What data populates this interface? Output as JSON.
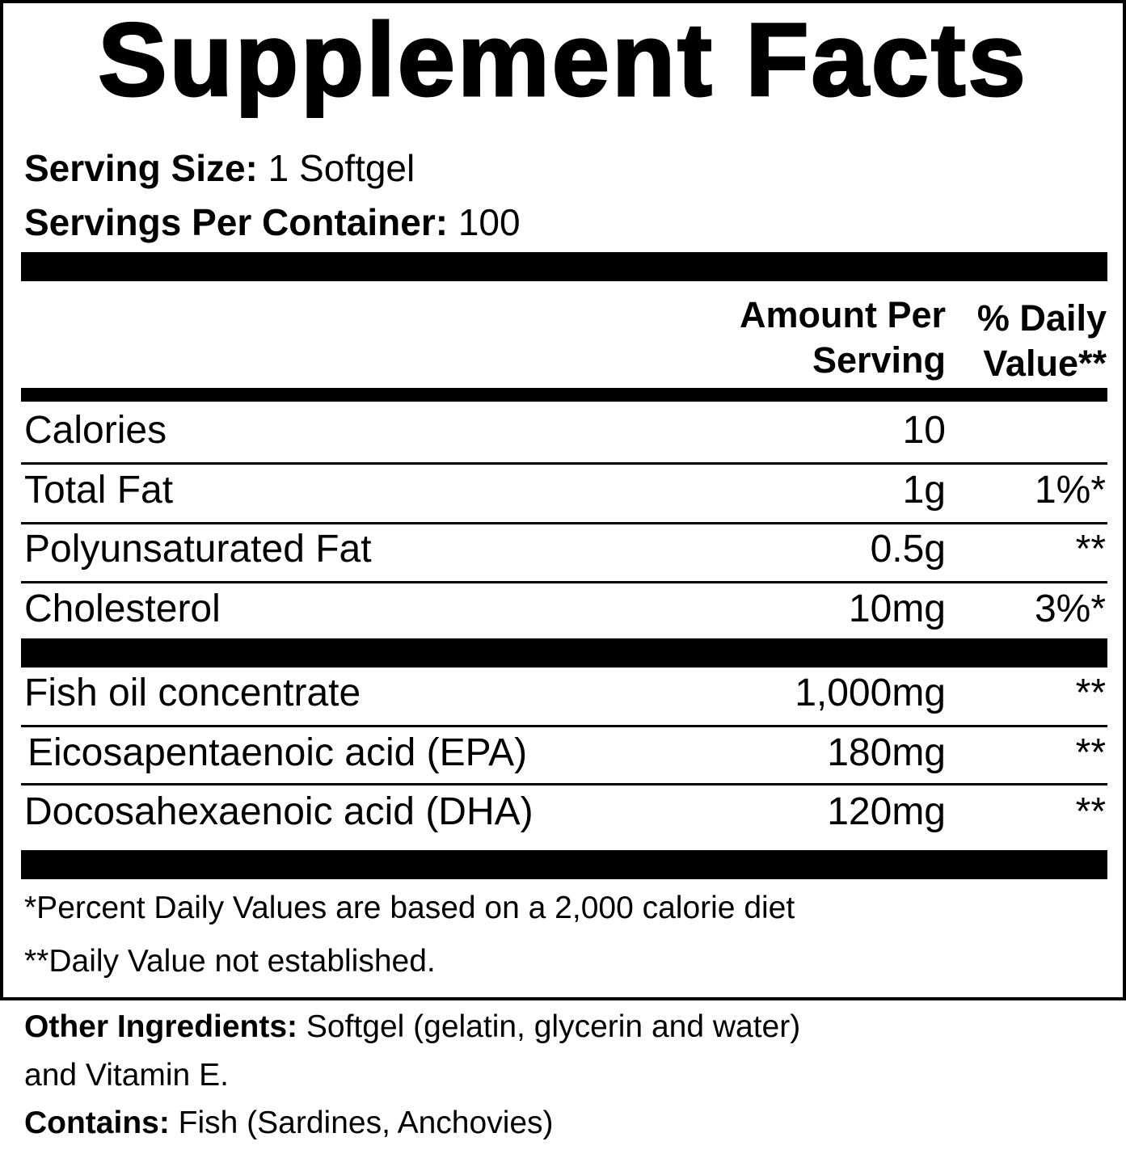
{
  "title": "Supplement Facts",
  "serving_size_label": "Serving Size:",
  "serving_size_value": " 1 Softgel",
  "servings_per_container_label": "Servings Per Container:",
  "servings_per_container_value": " 100",
  "header": {
    "amount_line1": "Amount Per",
    "amount_line2": "Serving",
    "dv_line1": "% Daily",
    "dv_line2": "Value**"
  },
  "rows": [
    {
      "name": "Calories",
      "amount": "10",
      "dv": ""
    },
    {
      "name": "Total Fat",
      "amount": "1g",
      "dv": "1%*"
    },
    {
      "name": "Polyunsaturated Fat",
      "amount": "0.5g",
      "dv": "**"
    },
    {
      "name": "Cholesterol",
      "amount": "10mg",
      "dv": "3%*"
    },
    {
      "name": "Fish oil concentrate",
      "amount": "1,000mg",
      "dv": "**"
    },
    {
      "name": "Eicosapentaenoic acid (EPA)",
      "amount": "180mg",
      "dv": "**"
    },
    {
      "name": "Docosahexaenoic acid (DHA)",
      "amount": "120mg",
      "dv": "**"
    }
  ],
  "notes": [
    "*Percent Daily Values are based on a 2,000 calorie diet",
    "**Daily Value not established."
  ],
  "other_ingredients_label": "Other Ingredients:",
  "other_ingredients_line1": " Softgel (gelatin, glycerin and water)",
  "other_ingredients_line2": "and Vitamin E.",
  "contains_label": "Contains:",
  "contains_value": " Fish (Sardines, Anchovies)"
}
